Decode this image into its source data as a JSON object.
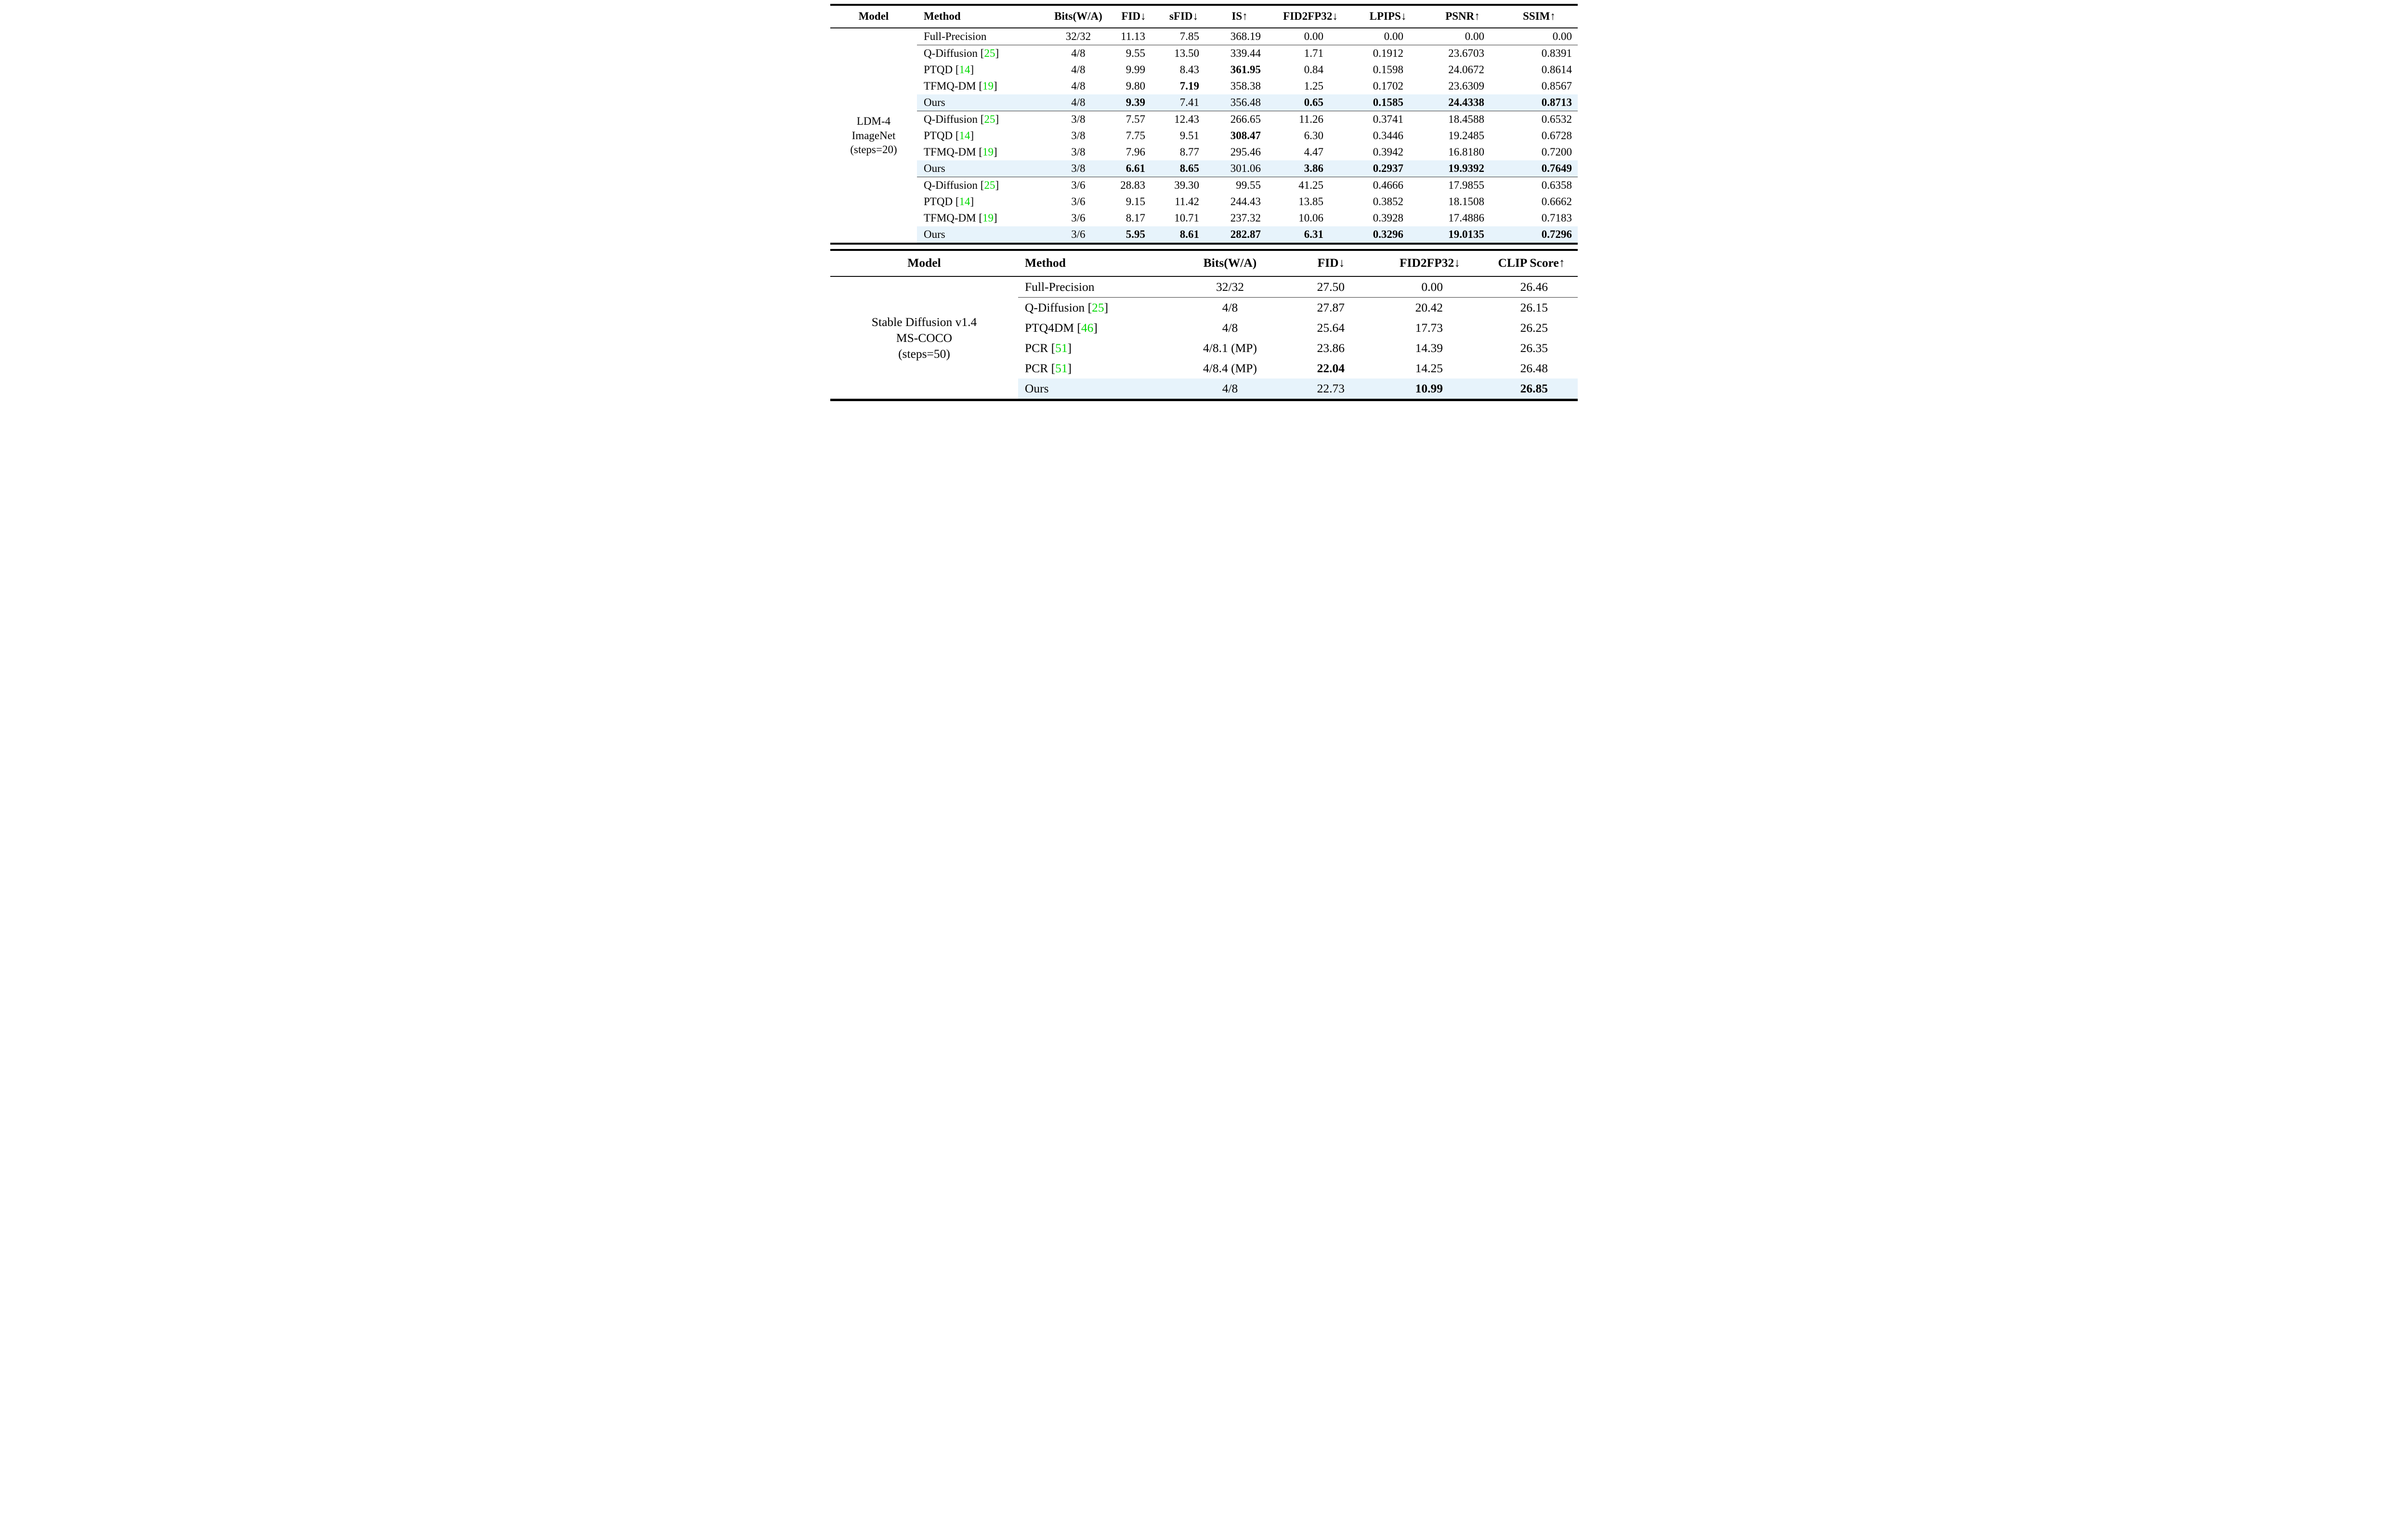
{
  "format": {
    "cite_prefix": " [",
    "cite_suffix": "]"
  },
  "colors": {
    "highlight": "#e7f3fb",
    "citation_green": "#00d800",
    "rule_black": "#000000"
  },
  "table1": {
    "headers": [
      "Model",
      "Method",
      "Bits(W/A)",
      "FID↓",
      "sFID↓",
      "IS↑",
      "FID2FP32↓",
      "LPIPS↓",
      "PSNR↑",
      "SSIM↑"
    ],
    "model": [
      "LDM-4",
      "ImageNet",
      "(steps=20)"
    ],
    "full_precision": {
      "method": "Full-Precision",
      "bits": "32/32",
      "values": [
        "11.13",
        "7.85",
        "368.19",
        "0.00",
        "0.00",
        "0.00",
        "0.00"
      ],
      "bold": []
    },
    "groups": [
      {
        "rows": [
          {
            "method": "Q-Diffusion",
            "cite": "25",
            "bits": "4/8",
            "values": [
              "9.55",
              "13.50",
              "339.44",
              "1.71",
              "0.1912",
              "23.6703",
              "0.8391"
            ],
            "bold": []
          },
          {
            "method": "PTQD",
            "cite": "14",
            "bits": "4/8",
            "values": [
              "9.99",
              "8.43",
              "361.95",
              "0.84",
              "0.1598",
              "24.0672",
              "0.8614"
            ],
            "bold": [
              2
            ]
          },
          {
            "method": "TFMQ-DM",
            "cite": "19",
            "bits": "4/8",
            "values": [
              "9.80",
              "7.19",
              "358.38",
              "1.25",
              "0.1702",
              "23.6309",
              "0.8567"
            ],
            "bold": [
              1
            ]
          },
          {
            "method": "Ours",
            "bits": "4/8",
            "highlight": true,
            "values": [
              "9.39",
              "7.41",
              "356.48",
              "0.65",
              "0.1585",
              "24.4338",
              "0.8713"
            ],
            "bold": [
              0,
              3,
              4,
              5,
              6
            ]
          }
        ]
      },
      {
        "rows": [
          {
            "method": "Q-Diffusion",
            "cite": "25",
            "bits": "3/8",
            "values": [
              "7.57",
              "12.43",
              "266.65",
              "11.26",
              "0.3741",
              "18.4588",
              "0.6532"
            ],
            "bold": []
          },
          {
            "method": "PTQD",
            "cite": "14",
            "bits": "3/8",
            "values": [
              "7.75",
              "9.51",
              "308.47",
              "6.30",
              "0.3446",
              "19.2485",
              "0.6728"
            ],
            "bold": [
              2
            ]
          },
          {
            "method": "TFMQ-DM",
            "cite": "19",
            "bits": "3/8",
            "values": [
              "7.96",
              "8.77",
              "295.46",
              "4.47",
              "0.3942",
              "16.8180",
              "0.7200"
            ],
            "bold": []
          },
          {
            "method": "Ours",
            "bits": "3/8",
            "highlight": true,
            "values": [
              "6.61",
              "8.65",
              "301.06",
              "3.86",
              "0.2937",
              "19.9392",
              "0.7649"
            ],
            "bold": [
              0,
              1,
              3,
              4,
              5,
              6
            ]
          }
        ]
      },
      {
        "rows": [
          {
            "method": "Q-Diffusion",
            "cite": "25",
            "bits": "3/6",
            "values": [
              "28.83",
              "39.30",
              "99.55",
              "41.25",
              "0.4666",
              "17.9855",
              "0.6358"
            ],
            "bold": []
          },
          {
            "method": "PTQD",
            "cite": "14",
            "bits": "3/6",
            "values": [
              "9.15",
              "11.42",
              "244.43",
              "13.85",
              "0.3852",
              "18.1508",
              "0.6662"
            ],
            "bold": []
          },
          {
            "method": "TFMQ-DM",
            "cite": "19",
            "bits": "3/6",
            "values": [
              "8.17",
              "10.71",
              "237.32",
              "10.06",
              "0.3928",
              "17.4886",
              "0.7183"
            ],
            "bold": []
          },
          {
            "method": "Ours",
            "bits": "3/6",
            "highlight": true,
            "values": [
              "5.95",
              "8.61",
              "282.87",
              "6.31",
              "0.3296",
              "19.0135",
              "0.7296"
            ],
            "bold": [
              0,
              1,
              2,
              3,
              4,
              5,
              6
            ]
          }
        ]
      }
    ]
  },
  "table2": {
    "headers": [
      "Model",
      "Method",
      "Bits(W/A)",
      "FID↓",
      "FID2FP32↓",
      "CLIP Score↑"
    ],
    "model": [
      "Stable Diffusion v1.4",
      "MS-COCO",
      "(steps=50)"
    ],
    "full_precision": {
      "method": "Full-Precision",
      "bits": "32/32",
      "values": [
        "27.50",
        "0.00",
        "26.46"
      ],
      "bold": []
    },
    "groups": [
      {
        "rows": [
          {
            "method": "Q-Diffusion",
            "cite": "25",
            "bits": "4/8",
            "values": [
              "27.87",
              "20.42",
              "26.15"
            ],
            "bold": []
          },
          {
            "method": "PTQ4DM",
            "cite": "46",
            "bits": "4/8",
            "values": [
              "25.64",
              "17.73",
              "26.25"
            ],
            "bold": []
          },
          {
            "method": "PCR",
            "cite": "51",
            "bits": "4/8.1 (MP)",
            "values": [
              "23.86",
              "14.39",
              "26.35"
            ],
            "bold": []
          },
          {
            "method": "PCR",
            "cite": "51",
            "bits": "4/8.4 (MP)",
            "values": [
              "22.04",
              "14.25",
              "26.48"
            ],
            "bold": [
              0
            ]
          },
          {
            "method": "Ours",
            "bits": "4/8",
            "highlight": true,
            "values": [
              "22.73",
              "10.99",
              "26.85"
            ],
            "bold": [
              1,
              2
            ]
          }
        ]
      }
    ]
  }
}
